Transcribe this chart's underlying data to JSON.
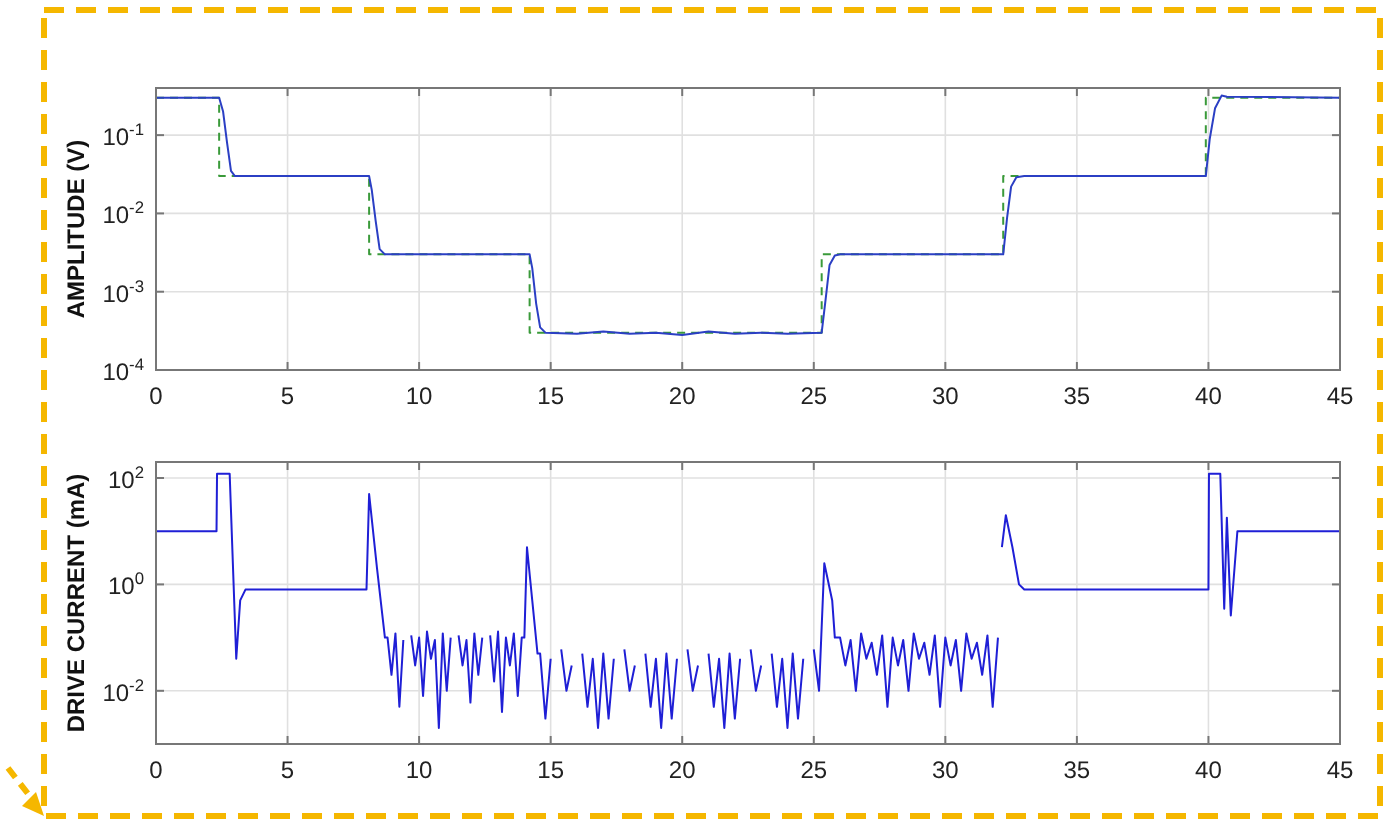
{
  "chart_data": [
    {
      "type": "line",
      "ylabel": "AMPLITUDE (V)",
      "log": "y",
      "grid": true,
      "xlim": [
        0,
        45
      ],
      "xticks": [
        0,
        5,
        10,
        15,
        20,
        25,
        30,
        35,
        40,
        45
      ],
      "ylim": [
        0.0001,
        0.4
      ],
      "yticks": [
        {
          "value": 0.0001,
          "label": "10$^{-4}$"
        },
        {
          "value": 0.001,
          "label": "10$^{-3}$"
        },
        {
          "value": 0.01,
          "label": "10$^{-2}$"
        },
        {
          "value": 0.1,
          "label": "10$^{-1}$"
        }
      ],
      "series": [
        {
          "color": "#3a9a3a",
          "line_style": "dashed",
          "x": [
            0,
            2.4,
            2.4,
            8.1,
            8.1,
            14.2,
            14.2,
            25.3,
            25.3,
            32.2,
            32.2,
            39.9,
            39.9,
            45
          ],
          "values": [
            0.3,
            0.3,
            0.03,
            0.03,
            0.003,
            0.003,
            0.0003,
            0.0003,
            0.003,
            0.003,
            0.03,
            0.03,
            0.3,
            0.3
          ]
        },
        {
          "color": "#2b3fc4",
          "x": [
            0,
            2.4,
            2.55,
            2.7,
            2.85,
            3.0,
            8.1,
            8.2,
            8.35,
            8.5,
            8.7,
            14.2,
            14.3,
            14.45,
            14.6,
            14.8,
            16,
            17,
            18,
            19,
            20,
            21,
            22,
            23,
            24,
            25.3,
            25.45,
            25.6,
            25.8,
            26,
            32.2,
            32.35,
            32.5,
            32.7,
            33,
            39.9,
            40.05,
            40.25,
            40.5,
            40.7,
            45
          ],
          "values": [
            0.3,
            0.3,
            0.2,
            0.08,
            0.035,
            0.03,
            0.03,
            0.02,
            0.008,
            0.0035,
            0.003,
            0.003,
            0.002,
            0.0007,
            0.00035,
            0.0003,
            0.00029,
            0.00031,
            0.00029,
            0.0003,
            0.00028,
            0.00031,
            0.00029,
            0.0003,
            0.00029,
            0.0003,
            0.0008,
            0.0022,
            0.0029,
            0.003,
            0.003,
            0.009,
            0.022,
            0.029,
            0.03,
            0.03,
            0.09,
            0.22,
            0.32,
            0.31,
            0.3
          ]
        }
      ]
    },
    {
      "type": "line",
      "ylabel": "DRIVE CURRENT (mA)",
      "log": "y",
      "grid": true,
      "xlim": [
        0,
        45
      ],
      "xticks": [
        0,
        5,
        10,
        15,
        20,
        25,
        30,
        35,
        40,
        45
      ],
      "ylim": [
        0.001,
        200
      ],
      "yticks": [
        {
          "value": 0.01,
          "label": "10$^{-2}$"
        },
        {
          "value": 1,
          "label": "10$^{0}$"
        },
        {
          "value": 100,
          "label": "10$^{2}$"
        }
      ],
      "series": [
        {
          "color": "#1f1fd6",
          "x": [
            0,
            2.3,
            2.32,
            2.8,
            3.05,
            3.2,
            3.4,
            8.0,
            8.1,
            8.4,
            8.7,
            8.8,
            8.95,
            9.1,
            9.25,
            9.4,
            9.55,
            9.7,
            9.85,
            10,
            10.15,
            10.3,
            10.45,
            10.6,
            10.75,
            10.9,
            11.05,
            11.2,
            11.35,
            11.5,
            11.65,
            11.8,
            11.95,
            12.1,
            12.25,
            12.4,
            12.55,
            12.7,
            12.85,
            13,
            13.15,
            13.3,
            13.45,
            13.6,
            13.75,
            13.9,
            14.0,
            14.1,
            14.3,
            14.5,
            14.6,
            14.8,
            15,
            15.2,
            15.4,
            15.6,
            15.8,
            16,
            16.2,
            16.4,
            16.6,
            16.8,
            17,
            17.2,
            17.4,
            17.6,
            17.8,
            18,
            18.2,
            18.4,
            18.6,
            18.8,
            19,
            19.2,
            19.4,
            19.6,
            19.8,
            20,
            20.2,
            20.4,
            20.6,
            20.8,
            21,
            21.2,
            21.4,
            21.6,
            21.8,
            22,
            22.2,
            22.4,
            22.6,
            22.8,
            23,
            23.2,
            23.4,
            23.6,
            23.8,
            24,
            24.2,
            24.4,
            24.6,
            24.8,
            25,
            25.2,
            25.4,
            25.7,
            25.8,
            26,
            26.2,
            26.4,
            26.6,
            26.8,
            27,
            27.2,
            27.4,
            27.6,
            27.8,
            28,
            28.2,
            28.4,
            28.6,
            28.8,
            29,
            29.2,
            29.4,
            29.6,
            29.8,
            30,
            30.2,
            30.4,
            30.6,
            30.8,
            31,
            31.2,
            31.4,
            31.6,
            31.8,
            32,
            32.05,
            32.15,
            32.3,
            32.55,
            32.8,
            33,
            40,
            40.02,
            40.45,
            40.6,
            40.7,
            40.85,
            41.1,
            41.3,
            45
          ],
          "values": [
            10,
            10,
            120,
            120,
            0.04,
            0.5,
            0.8,
            0.8,
            50,
            2,
            0.1,
            0.1,
            0.02,
            0.12,
            0.005,
            0.09,
            null,
            0.11,
            0.03,
            0.1,
            0.008,
            0.13,
            0.04,
            0.09,
            0.002,
            0.12,
            0.01,
            0.1,
            null,
            0.11,
            0.03,
            0.09,
            0.006,
            0.12,
            0.02,
            0.1,
            null,
            0.11,
            0.015,
            0.13,
            0.004,
            0.1,
            0.03,
            0.12,
            0.008,
            0.1,
            0.1,
            5,
            0.5,
            0.05,
            0.05,
            0.003,
            0.04,
            null,
            0.06,
            0.01,
            0.03,
            null,
            0.05,
            0.005,
            0.04,
            0.002,
            0.05,
            0.003,
            0.04,
            null,
            0.06,
            0.01,
            0.03,
            null,
            0.05,
            0.005,
            0.04,
            0.002,
            0.05,
            0.003,
            0.04,
            null,
            0.06,
            0.01,
            0.03,
            null,
            0.05,
            0.005,
            0.04,
            0.002,
            0.05,
            0.003,
            0.04,
            null,
            0.06,
            0.01,
            0.03,
            null,
            0.05,
            0.005,
            0.04,
            0.002,
            0.05,
            0.003,
            0.04,
            null,
            0.06,
            0.01,
            2.5,
            0.5,
            0.1,
            0.1,
            0.03,
            0.09,
            0.01,
            0.12,
            0.04,
            0.08,
            0.02,
            0.11,
            0.005,
            0.1,
            0.03,
            0.09,
            0.01,
            0.12,
            0.04,
            0.08,
            0.02,
            0.11,
            0.005,
            0.1,
            0.03,
            0.09,
            0.01,
            0.12,
            0.04,
            0.08,
            0.02,
            0.11,
            0.005,
            0.1,
            null,
            5,
            20,
            5,
            1,
            0.8,
            0.8,
            120,
            120,
            0.35,
            18,
            0.26,
            10,
            10,
            10
          ]
        }
      ]
    }
  ]
}
